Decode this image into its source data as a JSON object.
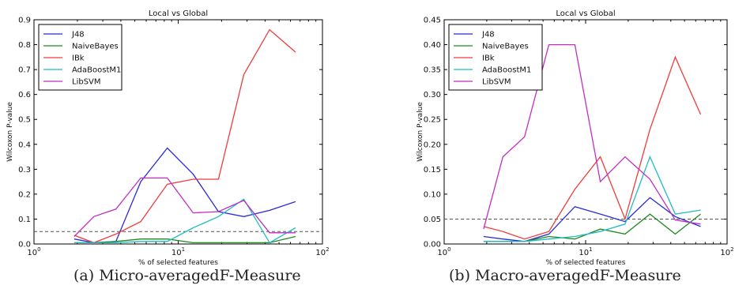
{
  "chart_data": [
    {
      "type": "line",
      "title": "Local vs Global",
      "xlabel": "% of selected features",
      "ylabel": "Wilcoxon P-value",
      "xscale": "log",
      "xlim": [
        1,
        100
      ],
      "ylim": [
        0,
        0.9
      ],
      "yticks": [
        "0.0",
        "0.1",
        "0.2",
        "0.3",
        "0.4",
        "0.5",
        "0.6",
        "0.7",
        "0.8",
        "0.9"
      ],
      "xticks": [
        {
          "value": 1,
          "base": "10",
          "exp": "0"
        },
        {
          "value": 10,
          "base": "10",
          "exp": "1"
        },
        {
          "value": 100,
          "base": "10",
          "exp": "2"
        }
      ],
      "threshold": 0.05,
      "legend_position": "top-left",
      "caption": "(a) Micro-averagedF-Measure",
      "x": [
        1.9,
        2.6,
        3.7,
        5.5,
        8.4,
        12.7,
        19.0,
        28.5,
        43.0,
        65.0
      ],
      "series": [
        {
          "name": "J48",
          "color": "#2b2bd6",
          "values": [
            0.02,
            0.005,
            0.01,
            0.25,
            0.385,
            0.28,
            0.13,
            0.11,
            0.135,
            0.17
          ]
        },
        {
          "name": "NaiveBayes",
          "color": "#1f8a1f",
          "values": [
            0.005,
            0.005,
            0.01,
            0.02,
            0.02,
            0.005,
            0.005,
            0.005,
            0.005,
            0.03
          ]
        },
        {
          "name": "IBk",
          "color": "#ef3b3b",
          "values": [
            0.035,
            0.005,
            0.04,
            0.09,
            0.24,
            0.26,
            0.26,
            0.68,
            0.86,
            0.77
          ]
        },
        {
          "name": "AdaBoostM1",
          "color": "#1fbcc4",
          "values": [
            0.005,
            0.005,
            0.005,
            0.01,
            0.01,
            0.065,
            0.11,
            0.18,
            0.005,
            0.065
          ]
        },
        {
          "name": "LibSVM",
          "color": "#c22ec2",
          "values": [
            0.03,
            0.11,
            0.14,
            0.265,
            0.265,
            0.125,
            0.13,
            0.175,
            0.045,
            0.045
          ]
        }
      ]
    },
    {
      "type": "line",
      "title": "Local vs Global",
      "xlabel": "% of selected features",
      "ylabel": "Wilcoxon P-value",
      "xscale": "log",
      "xlim": [
        1,
        100
      ],
      "ylim": [
        0,
        0.45
      ],
      "yticks": [
        "0.00",
        "0.05",
        "0.10",
        "0.15",
        "0.20",
        "0.25",
        "0.30",
        "0.35",
        "0.40",
        "0.45"
      ],
      "xticks": [
        {
          "value": 1,
          "base": "10",
          "exp": "0"
        },
        {
          "value": 10,
          "base": "10",
          "exp": "1"
        },
        {
          "value": 100,
          "base": "10",
          "exp": "2"
        }
      ],
      "threshold": 0.05,
      "legend_position": "top-left",
      "caption": "(b) Macro-averagedF-Measure",
      "x": [
        1.9,
        2.6,
        3.7,
        5.5,
        8.4,
        12.7,
        19.0,
        28.5,
        43.0,
        65.0
      ],
      "series": [
        {
          "name": "J48",
          "color": "#2b2bd6",
          "values": [
            0.015,
            0.01,
            0.005,
            0.02,
            0.075,
            0.06,
            0.045,
            0.093,
            0.055,
            0.035
          ]
        },
        {
          "name": "NaiveBayes",
          "color": "#1f8a1f",
          "values": [
            0.005,
            0.005,
            0.005,
            0.015,
            0.01,
            0.03,
            0.02,
            0.06,
            0.02,
            0.06
          ]
        },
        {
          "name": "IBk",
          "color": "#ef3b3b",
          "values": [
            0.035,
            0.025,
            0.01,
            0.025,
            0.11,
            0.175,
            0.05,
            0.23,
            0.375,
            0.26
          ]
        },
        {
          "name": "AdaBoostM1",
          "color": "#1fbcc4",
          "values": [
            0.005,
            0.005,
            0.005,
            0.01,
            0.015,
            0.025,
            0.04,
            0.175,
            0.06,
            0.068
          ]
        },
        {
          "name": "LibSVM",
          "color": "#c22ec2",
          "values": [
            0.03,
            0.175,
            0.215,
            0.4,
            0.4,
            0.125,
            0.175,
            0.13,
            0.048,
            0.04
          ]
        }
      ]
    }
  ]
}
